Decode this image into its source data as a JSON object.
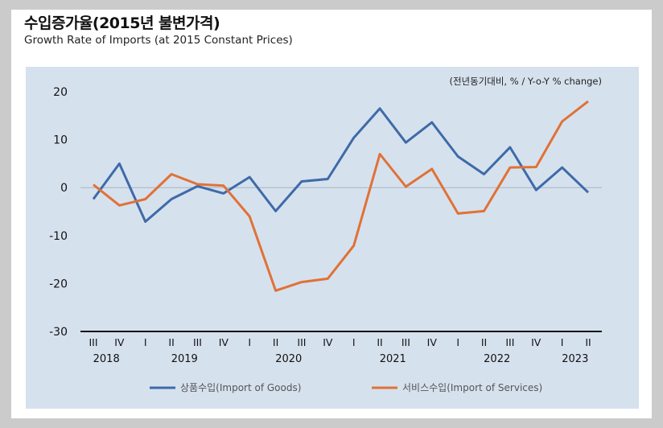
{
  "title": "수입증가율(2015년 불변가격)",
  "subtitle": "Growth Rate of Imports (at 2015 Constant Prices)",
  "colors": {
    "goods": "#3e6aa8",
    "services": "#e07236",
    "background": "#d6e1ee"
  },
  "chart_data": {
    "type": "line",
    "unit_label": "(전년동기대비, % / Y-o-Y % change)",
    "quarters": [
      "III",
      "IV",
      "I",
      "II",
      "III",
      "IV",
      "I",
      "II",
      "III",
      "IV",
      "I",
      "II",
      "III",
      "IV",
      "I",
      "II",
      "III",
      "IV",
      "I",
      "II"
    ],
    "years": [
      {
        "label": "2018",
        "from": 0,
        "to": 1
      },
      {
        "label": "2019",
        "from": 2,
        "to": 5
      },
      {
        "label": "2020",
        "from": 6,
        "to": 9
      },
      {
        "label": "2021",
        "from": 10,
        "to": 13
      },
      {
        "label": "2022",
        "from": 14,
        "to": 17
      },
      {
        "label": "2023",
        "from": 18,
        "to": 19
      }
    ],
    "ylim": [
      -30,
      20
    ],
    "yticks": [
      20,
      10,
      0,
      -10,
      -20,
      -30
    ],
    "legend_position": "bottom",
    "series": [
      {
        "name": "상품수입(Import of Goods)",
        "key": "goods",
        "values": [
          -2.4,
          5.0,
          -7.1,
          -2.4,
          0.3,
          -1.2,
          2.2,
          -4.9,
          1.3,
          1.8,
          10.4,
          16.5,
          9.4,
          13.6,
          6.5,
          2.8,
          8.4,
          -0.5,
          4.2,
          -1.0
        ]
      },
      {
        "name": "서비스수입(Import of Services)",
        "key": "services",
        "values": [
          0.6,
          -3.7,
          -2.4,
          2.8,
          0.7,
          0.4,
          -6.0,
          -21.5,
          -19.7,
          -19.0,
          -12.1,
          7.0,
          0.2,
          3.9,
          -5.4,
          -4.9,
          4.2,
          4.3,
          13.8,
          18.0
        ]
      }
    ]
  }
}
